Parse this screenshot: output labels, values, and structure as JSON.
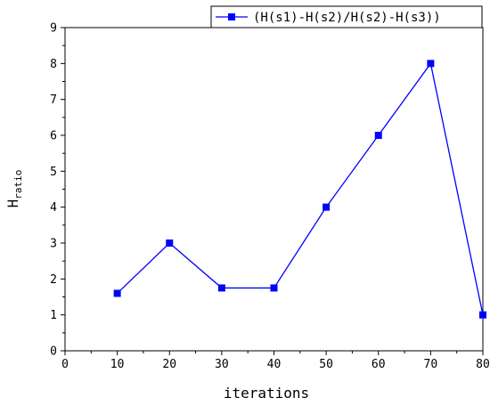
{
  "chart_data": {
    "type": "line",
    "title": "",
    "xlabel": "iterations",
    "ylabel": "H",
    "ylabel_subscript": "ratio",
    "xlim": [
      0,
      80
    ],
    "ylim": [
      0,
      9
    ],
    "x_ticks": [
      "0",
      "10",
      "20",
      "30",
      "40",
      "50",
      "60",
      "70",
      "80"
    ],
    "y_ticks": [
      "0",
      "1",
      "2",
      "3",
      "4",
      "5",
      "6",
      "7",
      "8",
      "9"
    ],
    "grid": false,
    "legend_position": "top-right",
    "series": [
      {
        "name": "(H(s1)-H(s2)/H(s2)-H(s3))",
        "color": "#0000ff",
        "marker": "square",
        "x": [
          10,
          20,
          30,
          40,
          50,
          60,
          70,
          80
        ],
        "y": [
          1.6,
          3.0,
          1.75,
          1.75,
          4.0,
          6.0,
          8.0,
          1.0
        ]
      }
    ]
  }
}
